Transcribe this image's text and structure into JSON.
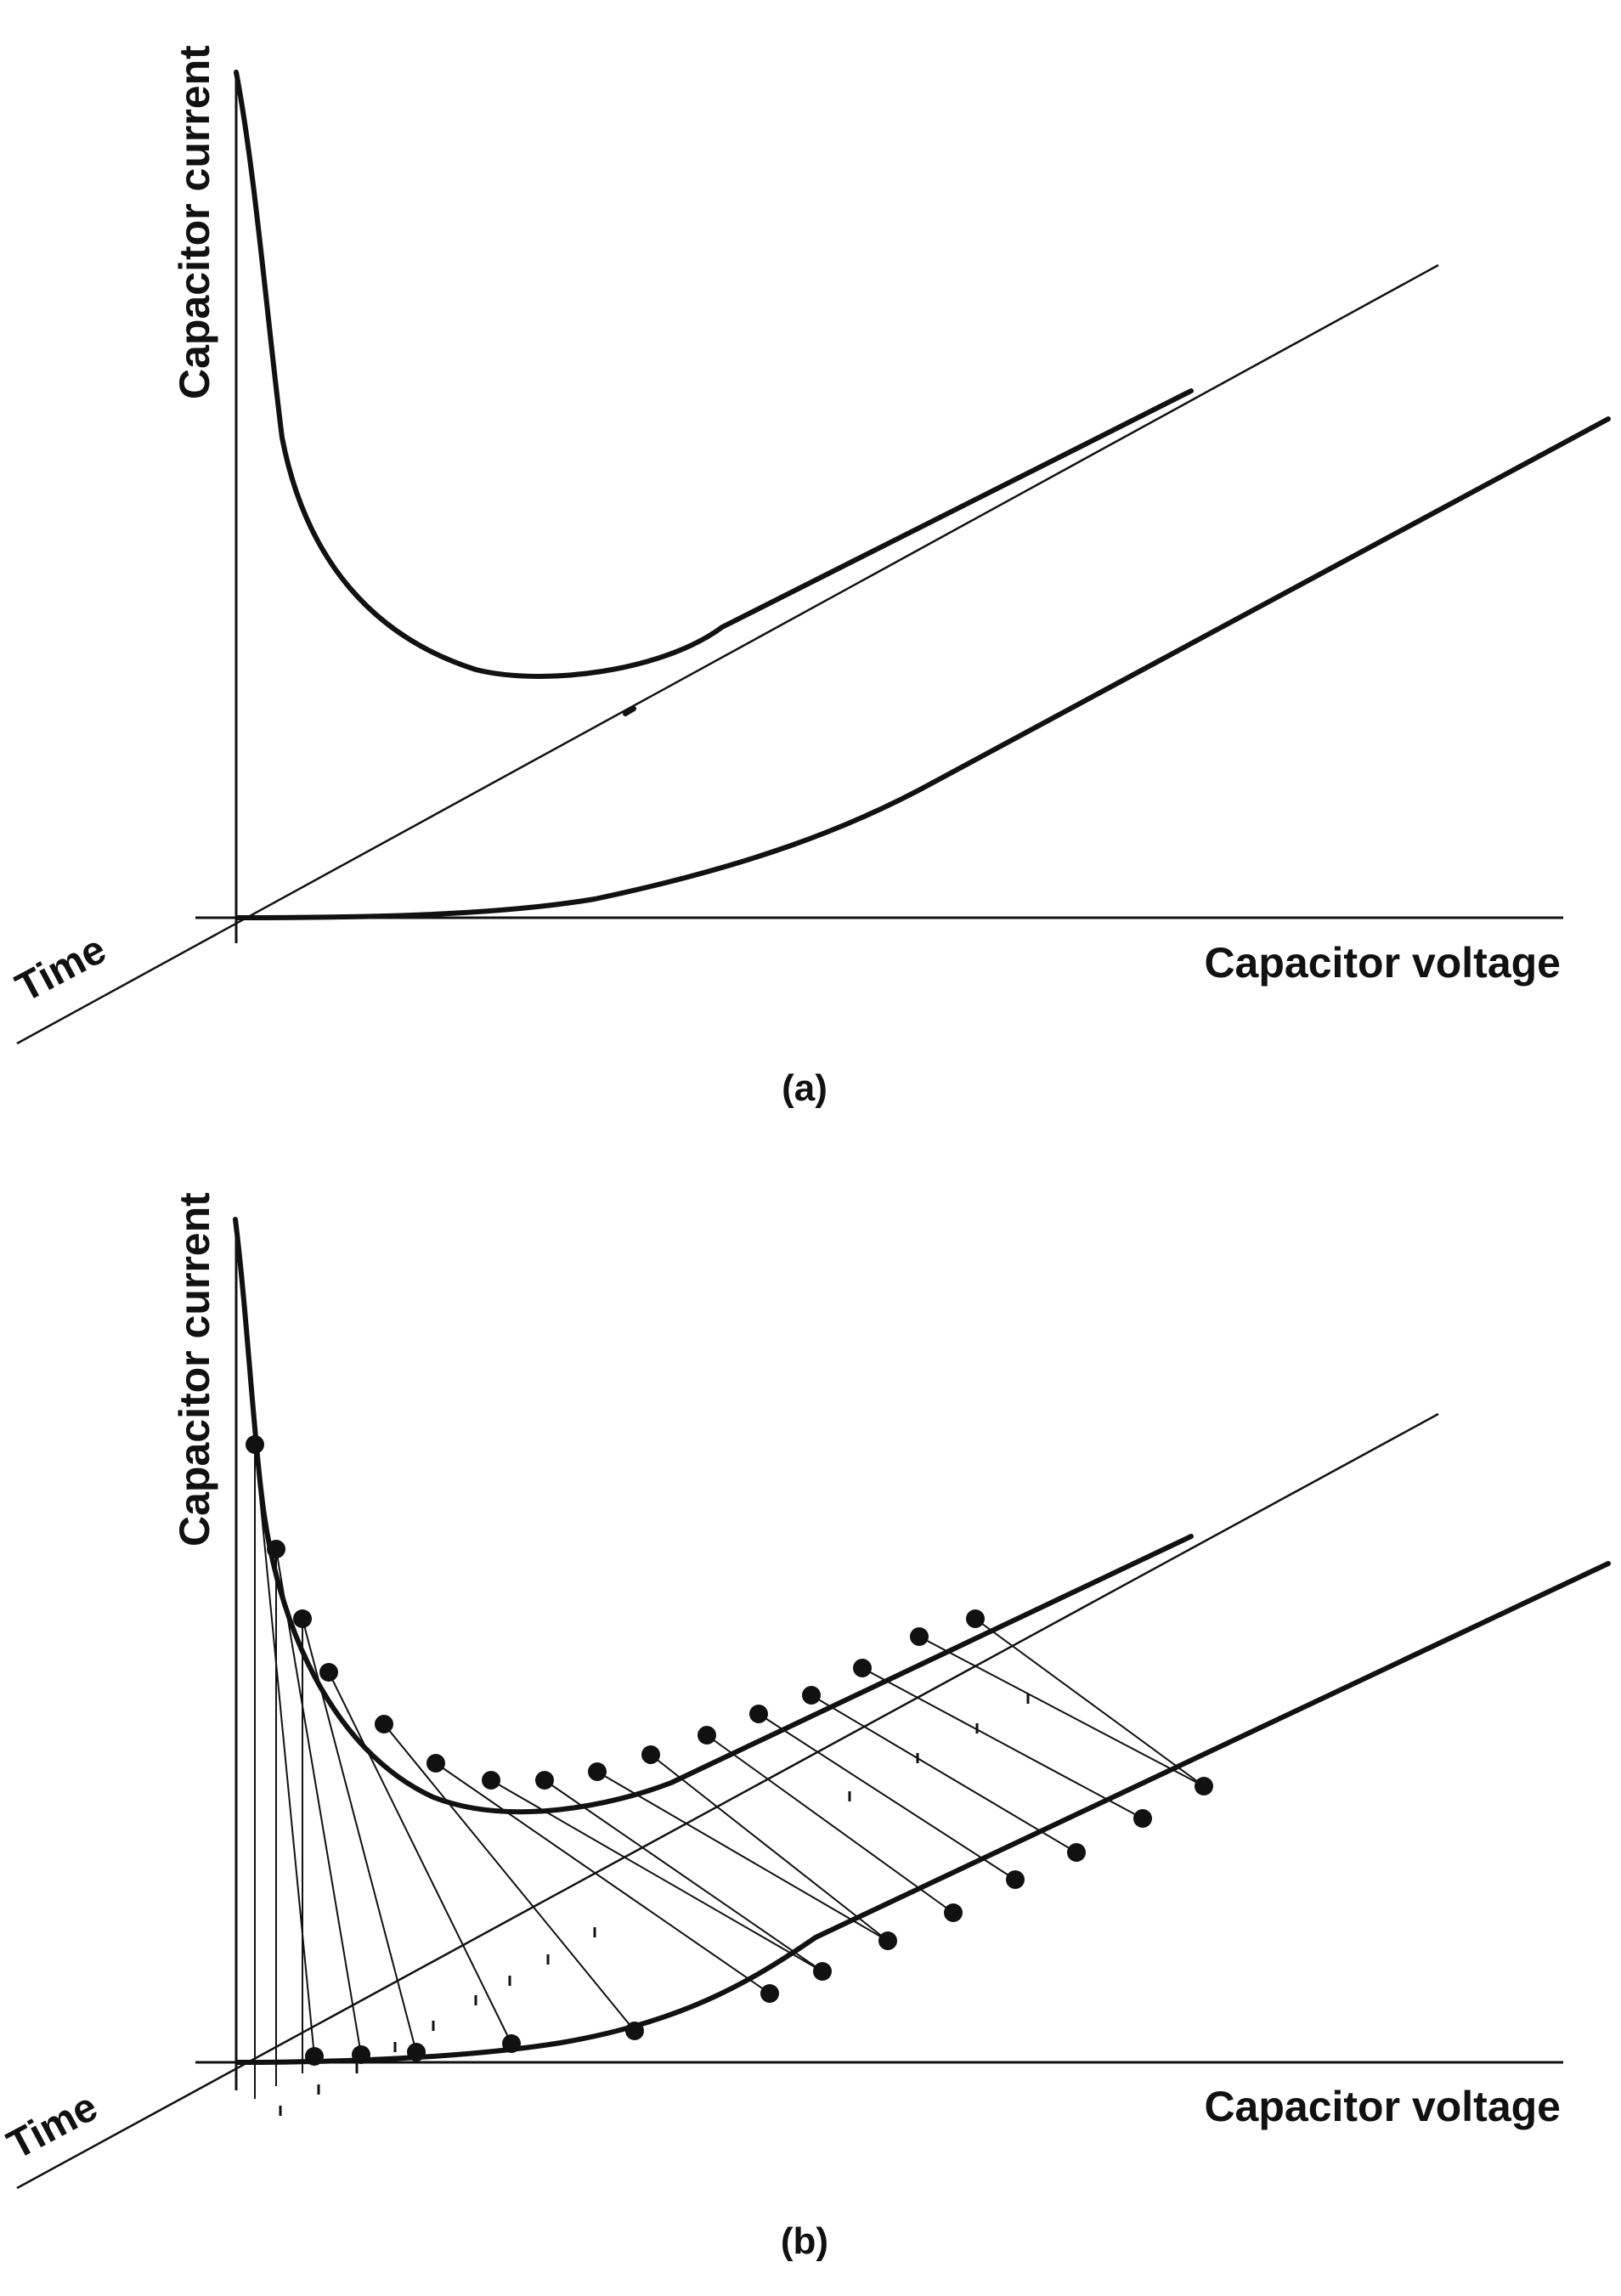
{
  "panels": [
    {
      "caption": "(a)",
      "labels": {
        "current": "Capacitor current",
        "voltage": "Capacitor voltage",
        "time": "Time"
      }
    },
    {
      "caption": "(b)",
      "labels": {
        "current": "Capacitor current",
        "voltage": "Capacitor voltage",
        "time": "Time"
      }
    }
  ],
  "colors": {
    "ink": "#111111",
    "background": "#ffffff"
  }
}
